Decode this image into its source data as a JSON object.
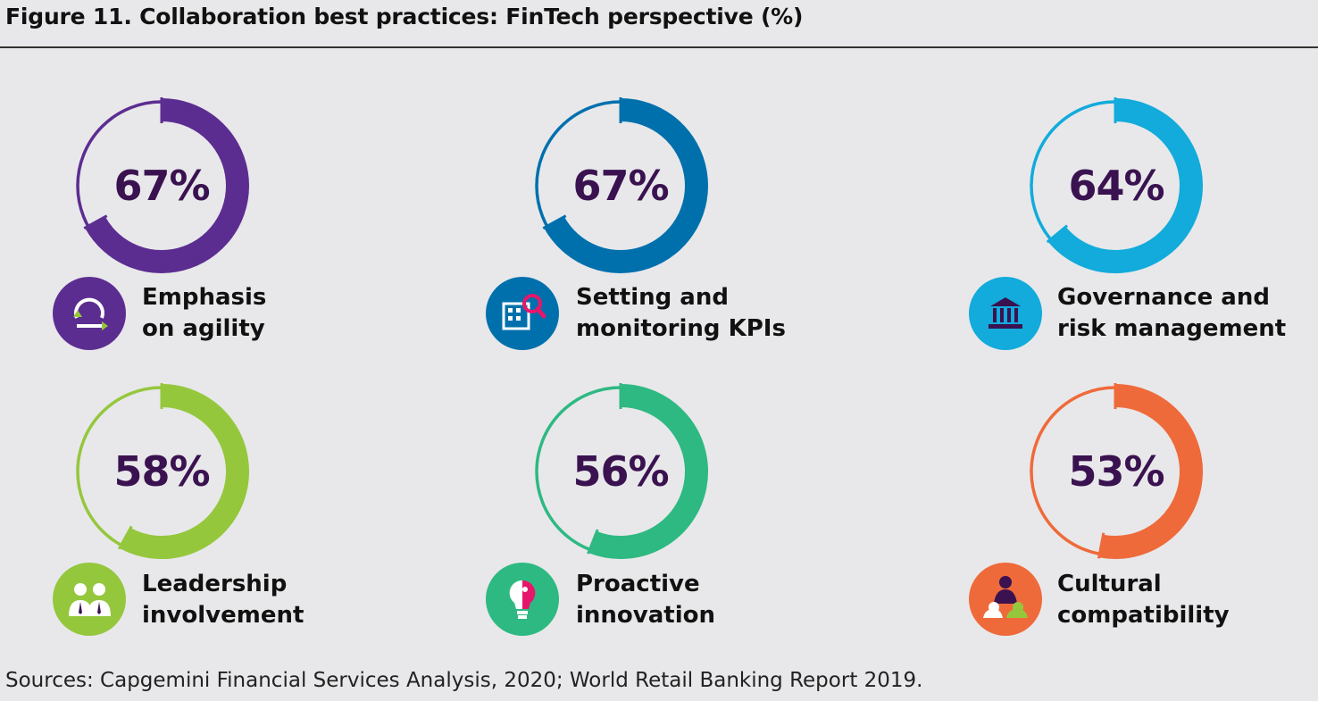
{
  "title": "Figure 11. Collaboration best practices: FinTech perspective (%)",
  "source": "Sources: Capgemini Financial Services Analysis, 2020; World Retail Banking Report 2019.",
  "chart_data": {
    "type": "donut",
    "title": "Figure 11. Collaboration best practices: FinTech perspective (%)",
    "unit": "%",
    "items": [
      {
        "label": "Emphasis on agility",
        "line1": "Emphasis",
        "line2": "on agility",
        "value": 67,
        "display": "67%",
        "color": "#5c2d91",
        "icon": "agility-cycle-icon"
      },
      {
        "label": "Setting and monitoring KPIs",
        "line1": "Setting and",
        "line2": "monitoring KPIs",
        "value": 67,
        "display": "67%",
        "color": "#0070ad",
        "icon": "kpi-magnifier-icon"
      },
      {
        "label": "Governance and risk management",
        "line1": "Governance and",
        "line2": "risk management",
        "value": 64,
        "display": "64%",
        "color": "#12abdb",
        "icon": "bank-building-icon"
      },
      {
        "label": "Leadership involvement",
        "line1": "Leadership",
        "line2": "involvement",
        "value": 58,
        "display": "58%",
        "color": "#95c73d",
        "icon": "leaders-icon"
      },
      {
        "label": "Proactive innovation",
        "line1": "Proactive",
        "line2": "innovation",
        "value": 56,
        "display": "56%",
        "color": "#2eb982",
        "icon": "lightbulb-icon"
      },
      {
        "label": "Cultural compatibility",
        "line1": "Cultural",
        "line2": "compatibility",
        "value": 53,
        "display": "53%",
        "color": "#ef6a3a",
        "icon": "people-group-icon"
      }
    ]
  }
}
